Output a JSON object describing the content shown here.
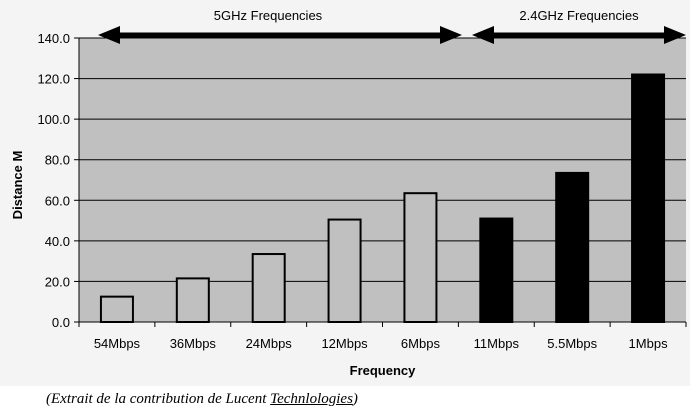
{
  "chart_data": {
    "type": "bar",
    "categories": [
      "54Mbps",
      "36Mbps",
      "24Mbps",
      "12Mbps",
      "6Mbps",
      "11Mbps",
      "5.5Mbps",
      "1Mbps"
    ],
    "values": [
      12.5,
      21.5,
      33.5,
      50.5,
      63.5,
      51,
      73.5,
      122
    ],
    "groups": [
      "5GHz",
      "5GHz",
      "5GHz",
      "5GHz",
      "5GHz",
      "2.4GHz",
      "2.4GHz",
      "2.4GHz"
    ],
    "bar_colors": {
      "5GHz": "#c0c0c0",
      "2.4GHz": "#000000"
    },
    "xlabel": "Frequency",
    "ylabel": "Distance M",
    "ylim": [
      0,
      140
    ],
    "yticks": [
      "0.0",
      "20.0",
      "40.0",
      "60.0",
      "80.0",
      "100.0",
      "120.0",
      "140.0"
    ],
    "ytick_values": [
      0,
      20,
      40,
      60,
      80,
      100,
      120,
      140
    ],
    "annotations": [
      {
        "text": "5GHz Frequencies",
        "from_category": 0,
        "to_category": 4
      },
      {
        "text": "2.4GHz Frequencies",
        "from_category": 5,
        "to_category": 7
      }
    ],
    "grid": true,
    "plot_background": "#c0c0c0"
  },
  "caption": {
    "prefix": "(Extrait de la contribution de Lucent ",
    "underlined": "Technlologies",
    "suffix": ")"
  }
}
